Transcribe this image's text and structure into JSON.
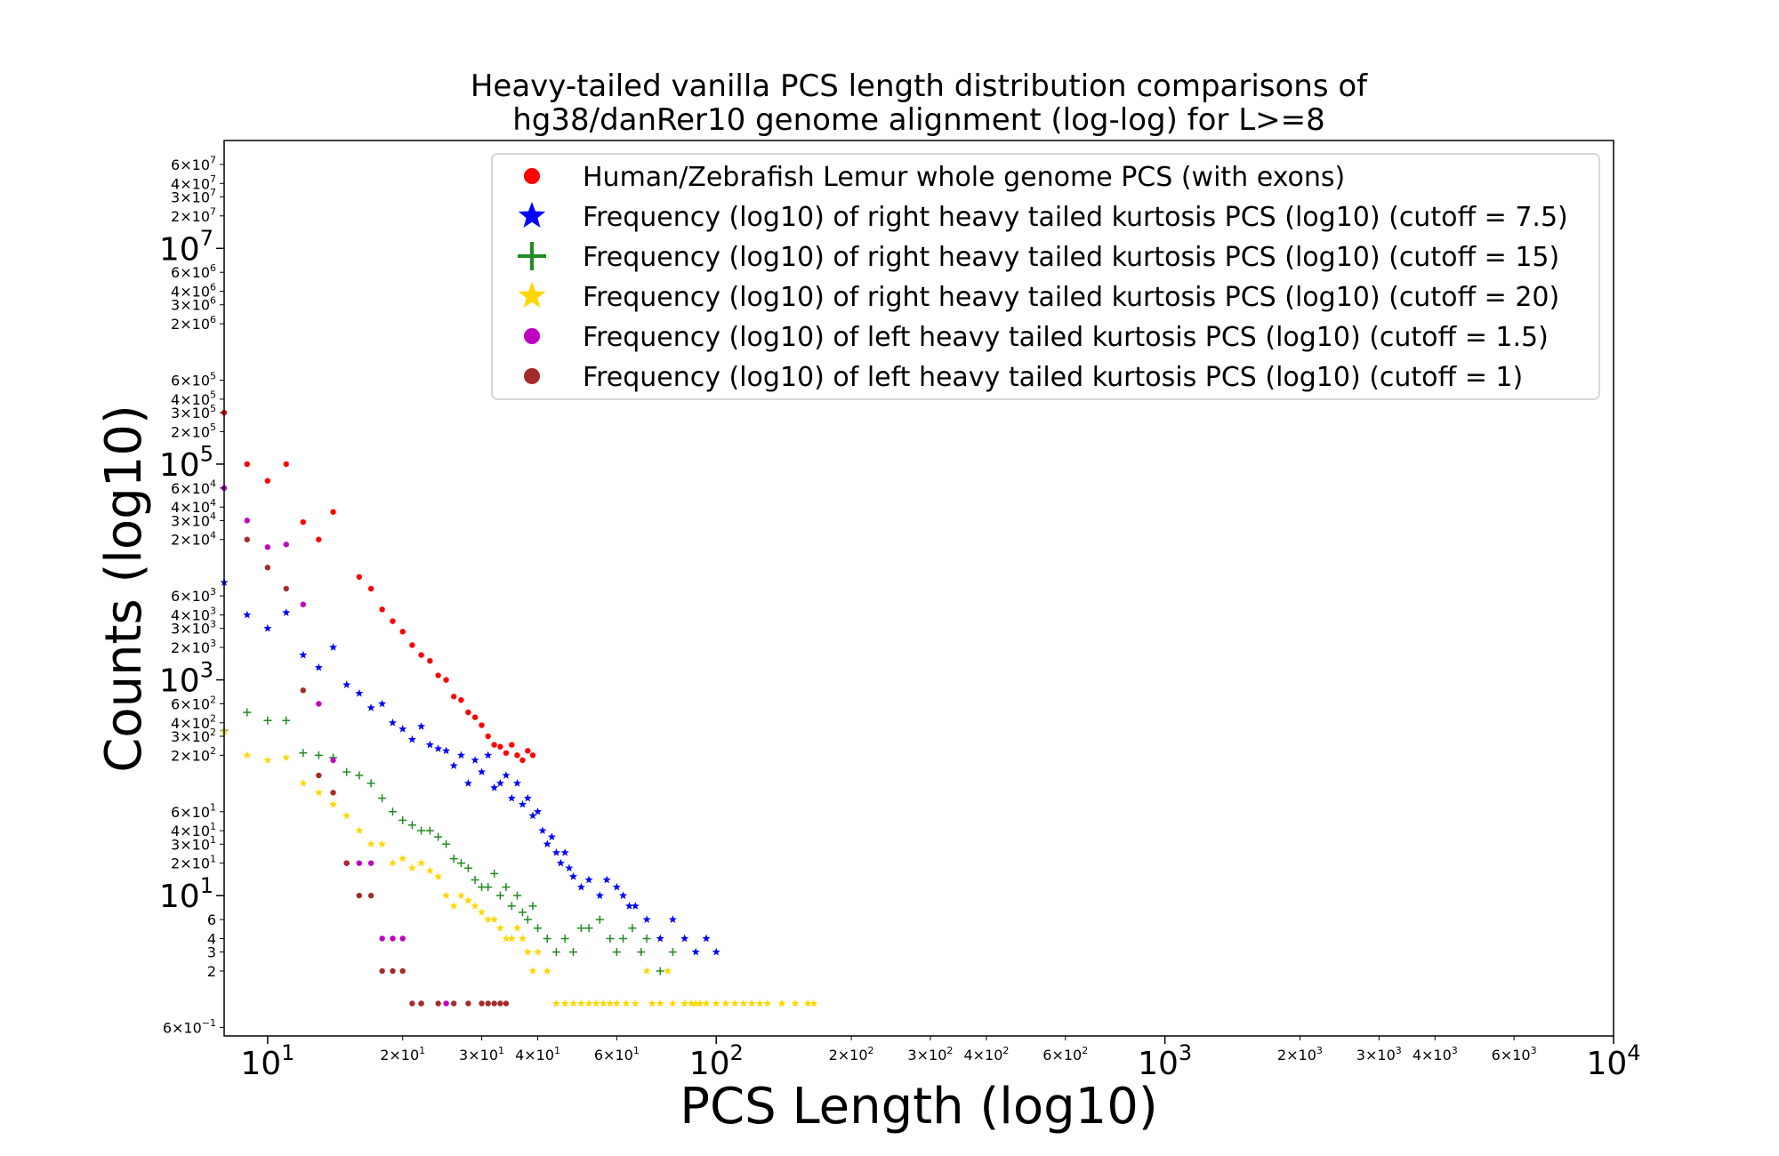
{
  "chart_data": {
    "type": "scatter",
    "title_lines": [
      "Heavy-tailed vanilla PCS length distribution comparisons of",
      "hg38/danRer10 genome alignment (log-log) for L>=8"
    ],
    "xlabel": "PCS Length (log10)",
    "ylabel": "Counts (log10)",
    "x_scale": "log",
    "y_scale": "log",
    "xlim": [
      8,
      10000
    ],
    "ylim": [
      0.5,
      100000000
    ],
    "grid": false,
    "legend_position": "upper-right",
    "x_major_ticks": [
      {
        "value": 10,
        "base": "10",
        "exp": "1"
      },
      {
        "value": 100,
        "base": "10",
        "exp": "2"
      },
      {
        "value": 1000,
        "base": "10",
        "exp": "3"
      },
      {
        "value": 10000,
        "base": "10",
        "exp": "4"
      }
    ],
    "x_minor_ticks": [
      {
        "value": 20,
        "label": "2×10",
        "exp": "1"
      },
      {
        "value": 30,
        "label": "3×10",
        "exp": "1"
      },
      {
        "value": 40,
        "label": "4×10",
        "exp": "1"
      },
      {
        "value": 60,
        "label": "6×10",
        "exp": "1"
      },
      {
        "value": 200,
        "label": "2×10",
        "exp": "2"
      },
      {
        "value": 300,
        "label": "3×10",
        "exp": "2"
      },
      {
        "value": 400,
        "label": "4×10",
        "exp": "2"
      },
      {
        "value": 600,
        "label": "6×10",
        "exp": "2"
      },
      {
        "value": 2000,
        "label": "2×10",
        "exp": "3"
      },
      {
        "value": 3000,
        "label": "3×10",
        "exp": "3"
      },
      {
        "value": 4000,
        "label": "4×10",
        "exp": "3"
      },
      {
        "value": 6000,
        "label": "6×10",
        "exp": "3"
      }
    ],
    "y_major_ticks": [
      {
        "value": 10,
        "base": "10",
        "exp": "1"
      },
      {
        "value": 1000,
        "base": "10",
        "exp": "3"
      },
      {
        "value": 100000,
        "base": "10",
        "exp": "5"
      },
      {
        "value": 10000000,
        "base": "10",
        "exp": "7"
      }
    ],
    "y_minor_ticks": [
      {
        "value": 0.6,
        "label": "6×10",
        "exp": "−1"
      },
      {
        "value": 2,
        "label": "2",
        "exp": ""
      },
      {
        "value": 3,
        "label": "3",
        "exp": ""
      },
      {
        "value": 4,
        "label": "4",
        "exp": ""
      },
      {
        "value": 6,
        "label": "6",
        "exp": ""
      },
      {
        "value": 20,
        "label": "2×10",
        "exp": "1"
      },
      {
        "value": 30,
        "label": "3×10",
        "exp": "1"
      },
      {
        "value": 40,
        "label": "4×10",
        "exp": "1"
      },
      {
        "value": 60,
        "label": "6×10",
        "exp": "1"
      },
      {
        "value": 200,
        "label": "2×10",
        "exp": "2"
      },
      {
        "value": 300,
        "label": "3×10",
        "exp": "2"
      },
      {
        "value": 400,
        "label": "4×10",
        "exp": "2"
      },
      {
        "value": 600,
        "label": "6×10",
        "exp": "2"
      },
      {
        "value": 2000,
        "label": "2×10",
        "exp": "3"
      },
      {
        "value": 3000,
        "label": "3×10",
        "exp": "3"
      },
      {
        "value": 4000,
        "label": "4×10",
        "exp": "3"
      },
      {
        "value": 6000,
        "label": "6×10",
        "exp": "3"
      },
      {
        "value": 20000,
        "label": "2×10",
        "exp": "4"
      },
      {
        "value": 30000,
        "label": "3×10",
        "exp": "4"
      },
      {
        "value": 40000,
        "label": "4×10",
        "exp": "4"
      },
      {
        "value": 60000,
        "label": "6×10",
        "exp": "4"
      },
      {
        "value": 200000,
        "label": "2×10",
        "exp": "5"
      },
      {
        "value": 300000,
        "label": "3×10",
        "exp": "5"
      },
      {
        "value": 400000,
        "label": "4×10",
        "exp": "5"
      },
      {
        "value": 600000,
        "label": "6×10",
        "exp": "5"
      },
      {
        "value": 2000000,
        "label": "2×10",
        "exp": "6"
      },
      {
        "value": 3000000,
        "label": "3×10",
        "exp": "6"
      },
      {
        "value": 4000000,
        "label": "4×10",
        "exp": "6"
      },
      {
        "value": 6000000,
        "label": "6×10",
        "exp": "6"
      },
      {
        "value": 20000000,
        "label": "2×10",
        "exp": "7"
      },
      {
        "value": 30000000,
        "label": "3×10",
        "exp": "7"
      },
      {
        "value": 40000000,
        "label": "4×10",
        "exp": "7"
      },
      {
        "value": 60000000,
        "label": "6×10",
        "exp": "7"
      }
    ],
    "series": [
      {
        "name": "Human/Zebrafish Lemur whole genome PCS (with exons)",
        "color": "#ff0000",
        "marker": "circle",
        "points": [
          [
            8,
            300000
          ],
          [
            9,
            100000
          ],
          [
            10,
            70000
          ],
          [
            11,
            100000
          ],
          [
            12,
            29000
          ],
          [
            13,
            20000
          ],
          [
            14,
            36000
          ],
          [
            16,
            9000
          ],
          [
            17,
            7000
          ],
          [
            18,
            4500
          ],
          [
            19,
            3500
          ],
          [
            20,
            2800
          ],
          [
            21,
            2100
          ],
          [
            22,
            1700
          ],
          [
            23,
            1500
          ],
          [
            24,
            1100
          ],
          [
            25,
            1000
          ],
          [
            26,
            700
          ],
          [
            27,
            650
          ],
          [
            28,
            500
          ],
          [
            29,
            450
          ],
          [
            30,
            380
          ],
          [
            31,
            300
          ],
          [
            32,
            250
          ],
          [
            33,
            240
          ],
          [
            34,
            210
          ],
          [
            35,
            250
          ],
          [
            36,
            200
          ],
          [
            37,
            180
          ],
          [
            38,
            220
          ],
          [
            39,
            200
          ]
        ]
      },
      {
        "name": "Frequency (log10) of right heavy tailed kurtosis PCS (log10) (cutoff = 7.5)",
        "color": "#0000ff",
        "marker": "star",
        "points": [
          [
            8,
            8000
          ],
          [
            9,
            4000
          ],
          [
            10,
            3000
          ],
          [
            11,
            4200
          ],
          [
            12,
            1700
          ],
          [
            13,
            1300
          ],
          [
            14,
            2000
          ],
          [
            15,
            900
          ],
          [
            16,
            750
          ],
          [
            17,
            550
          ],
          [
            18,
            600
          ],
          [
            19,
            400
          ],
          [
            20,
            350
          ],
          [
            21,
            280
          ],
          [
            22,
            370
          ],
          [
            23,
            250
          ],
          [
            24,
            230
          ],
          [
            25,
            220
          ],
          [
            26,
            160
          ],
          [
            27,
            200
          ],
          [
            28,
            110
          ],
          [
            29,
            180
          ],
          [
            30,
            140
          ],
          [
            31,
            200
          ],
          [
            32,
            100
          ],
          [
            33,
            110
          ],
          [
            34,
            130
          ],
          [
            35,
            80
          ],
          [
            36,
            110
          ],
          [
            37,
            70
          ],
          [
            38,
            80
          ],
          [
            39,
            55
          ],
          [
            40,
            60
          ],
          [
            41,
            40
          ],
          [
            42,
            30
          ],
          [
            43,
            35
          ],
          [
            44,
            25
          ],
          [
            45,
            20
          ],
          [
            46,
            25
          ],
          [
            47,
            18
          ],
          [
            48,
            15
          ],
          [
            50,
            12
          ],
          [
            52,
            14
          ],
          [
            55,
            10
          ],
          [
            57,
            14
          ],
          [
            60,
            12
          ],
          [
            62,
            10
          ],
          [
            64,
            8
          ],
          [
            66,
            8
          ],
          [
            70,
            6
          ],
          [
            75,
            4
          ],
          [
            80,
            6
          ],
          [
            85,
            4
          ],
          [
            90,
            3
          ],
          [
            95,
            4
          ],
          [
            100,
            3
          ]
        ]
      },
      {
        "name": "Frequency (log10) of right heavy tailed kurtosis PCS (log10) (cutoff = 15)",
        "color": "#228b22",
        "marker": "plus",
        "points": [
          [
            8,
            340
          ],
          [
            9,
            500
          ],
          [
            10,
            420
          ],
          [
            11,
            420
          ],
          [
            12,
            210
          ],
          [
            13,
            200
          ],
          [
            14,
            190
          ],
          [
            15,
            140
          ],
          [
            16,
            130
          ],
          [
            17,
            110
          ],
          [
            18,
            80
          ],
          [
            19,
            60
          ],
          [
            20,
            50
          ],
          [
            21,
            45
          ],
          [
            22,
            40
          ],
          [
            23,
            40
          ],
          [
            24,
            35
          ],
          [
            25,
            30
          ],
          [
            26,
            22
          ],
          [
            27,
            20
          ],
          [
            28,
            18
          ],
          [
            29,
            14
          ],
          [
            30,
            12
          ],
          [
            31,
            12
          ],
          [
            32,
            16
          ],
          [
            33,
            10
          ],
          [
            34,
            12
          ],
          [
            35,
            8
          ],
          [
            36,
            10
          ],
          [
            37,
            7
          ],
          [
            38,
            6
          ],
          [
            39,
            8
          ],
          [
            40,
            5
          ],
          [
            42,
            4
          ],
          [
            44,
            3
          ],
          [
            46,
            4
          ],
          [
            48,
            3
          ],
          [
            50,
            5
          ],
          [
            52,
            5
          ],
          [
            55,
            6
          ],
          [
            58,
            4
          ],
          [
            60,
            3
          ],
          [
            62,
            4
          ],
          [
            65,
            5
          ],
          [
            68,
            3
          ],
          [
            70,
            4
          ],
          [
            75,
            2
          ],
          [
            80,
            3
          ]
        ]
      },
      {
        "name": "Frequency (log10) of right heavy tailed kurtosis PCS (log10) (cutoff = 20)",
        "color": "#ffd700",
        "marker": "star",
        "points": [
          [
            8,
            330
          ],
          [
            9,
            200
          ],
          [
            10,
            180
          ],
          [
            11,
            190
          ],
          [
            12,
            110
          ],
          [
            13,
            90
          ],
          [
            14,
            70
          ],
          [
            15,
            55
          ],
          [
            16,
            40
          ],
          [
            17,
            30
          ],
          [
            18,
            30
          ],
          [
            19,
            20
          ],
          [
            20,
            22
          ],
          [
            21,
            18
          ],
          [
            22,
            20
          ],
          [
            23,
            17
          ],
          [
            24,
            15
          ],
          [
            25,
            10
          ],
          [
            26,
            8
          ],
          [
            27,
            10
          ],
          [
            28,
            9
          ],
          [
            29,
            8
          ],
          [
            30,
            7
          ],
          [
            31,
            6
          ],
          [
            32,
            6
          ],
          [
            33,
            5
          ],
          [
            34,
            4
          ],
          [
            35,
            4
          ],
          [
            36,
            5
          ],
          [
            37,
            4
          ],
          [
            38,
            3
          ],
          [
            39,
            2
          ],
          [
            40,
            3
          ],
          [
            42,
            2
          ],
          [
            44,
            1
          ],
          [
            46,
            1
          ],
          [
            48,
            1
          ],
          [
            50,
            1
          ],
          [
            52,
            1
          ],
          [
            54,
            1
          ],
          [
            56,
            1
          ],
          [
            58,
            1
          ],
          [
            60,
            1
          ],
          [
            63,
            1
          ],
          [
            66,
            1
          ],
          [
            70,
            2
          ],
          [
            72,
            1
          ],
          [
            75,
            1
          ],
          [
            78,
            2
          ],
          [
            80,
            1
          ],
          [
            85,
            1
          ],
          [
            88,
            1
          ],
          [
            90,
            1
          ],
          [
            92,
            1
          ],
          [
            95,
            1
          ],
          [
            100,
            1
          ],
          [
            105,
            1
          ],
          [
            110,
            1
          ],
          [
            115,
            1
          ],
          [
            120,
            1
          ],
          [
            125,
            1
          ],
          [
            130,
            1
          ],
          [
            140,
            1
          ],
          [
            150,
            1
          ],
          [
            160,
            1
          ],
          [
            165,
            1
          ]
        ]
      },
      {
        "name": "Frequency (log10) of left heavy tailed kurtosis PCS (log10) (cutoff = 1.5)",
        "color": "#c000c0",
        "marker": "circle",
        "points": [
          [
            8,
            60000
          ],
          [
            9,
            30000
          ],
          [
            10,
            17000
          ],
          [
            11,
            18000
          ],
          [
            12,
            5000
          ],
          [
            13,
            600
          ],
          [
            14,
            180
          ],
          [
            15,
            20
          ],
          [
            16,
            20
          ],
          [
            17,
            20
          ],
          [
            18,
            4
          ],
          [
            19,
            4
          ],
          [
            20,
            4
          ],
          [
            22,
            1
          ],
          [
            25,
            1
          ]
        ]
      },
      {
        "name": "Frequency (log10) of left heavy tailed kurtosis PCS (log10) (cutoff = 1)",
        "color": "#a52a2a",
        "marker": "circle",
        "points": [
          [
            9,
            20000
          ],
          [
            10,
            11000
          ],
          [
            11,
            7000
          ],
          [
            12,
            800
          ],
          [
            13,
            130
          ],
          [
            14,
            90
          ],
          [
            15,
            20
          ],
          [
            16,
            10
          ],
          [
            17,
            10
          ],
          [
            18,
            2
          ],
          [
            19,
            2
          ],
          [
            20,
            2
          ],
          [
            21,
            1
          ],
          [
            22,
            1
          ],
          [
            24,
            1
          ],
          [
            26,
            1
          ],
          [
            28,
            1
          ],
          [
            30,
            1
          ],
          [
            31,
            1
          ],
          [
            32,
            1
          ],
          [
            33,
            1
          ],
          [
            34,
            1
          ]
        ]
      }
    ]
  }
}
